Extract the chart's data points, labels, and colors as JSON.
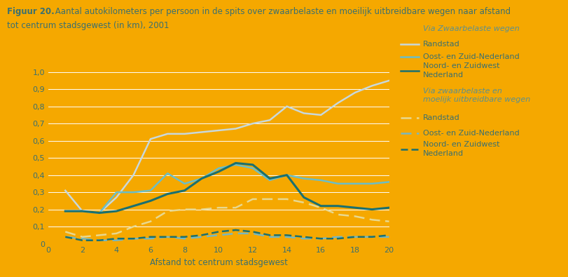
{
  "background_color": "#F5A800",
  "title_bold": "Figuur 20.",
  "title_normal": " Aantal autokilometers per persoon in de spits over zwaarbelaste en moeilijk uitbreidbare wegen naar afstand",
  "title_line2": "tot centrum stadsgewest (in km), 2001",
  "xlabel": "Afstand tot centrum stadsgewest",
  "xlim": [
    0,
    20
  ],
  "ylim": [
    0,
    1.0
  ],
  "yticks": [
    0,
    0.1,
    0.2,
    0.3,
    0.4,
    0.5,
    0.6,
    0.7,
    0.8,
    0.9,
    1.0
  ],
  "ytick_labels": [
    "0",
    "0,1",
    "0,2",
    "0,3",
    "0,4",
    "0,5",
    "0,6",
    "0,7",
    "0,8",
    "0,9",
    "1,0"
  ],
  "xticks": [
    0,
    2,
    4,
    6,
    8,
    10,
    12,
    14,
    16,
    18,
    20
  ],
  "x": [
    1,
    2,
    3,
    4,
    5,
    6,
    7,
    8,
    9,
    10,
    11,
    12,
    13,
    14,
    15,
    16,
    17,
    18,
    19,
    20
  ],
  "line_zwaar_randstad": [
    0.31,
    0.19,
    0.18,
    0.27,
    0.4,
    0.61,
    0.64,
    0.64,
    0.65,
    0.66,
    0.67,
    0.7,
    0.72,
    0.8,
    0.76,
    0.75,
    0.82,
    0.88,
    0.92,
    0.95
  ],
  "line_zwaar_oost": [
    0.19,
    0.19,
    0.18,
    0.3,
    0.3,
    0.31,
    0.41,
    0.35,
    0.38,
    0.44,
    0.46,
    0.44,
    0.37,
    0.4,
    0.38,
    0.37,
    0.35,
    0.35,
    0.35,
    0.36
  ],
  "line_zwaar_noord": [
    0.19,
    0.19,
    0.18,
    0.19,
    0.22,
    0.25,
    0.29,
    0.31,
    0.38,
    0.42,
    0.47,
    0.46,
    0.38,
    0.4,
    0.27,
    0.22,
    0.22,
    0.21,
    0.2,
    0.21
  ],
  "line_moei_randstad": [
    0.07,
    0.04,
    0.05,
    0.06,
    0.1,
    0.13,
    0.19,
    0.2,
    0.2,
    0.21,
    0.21,
    0.26,
    0.26,
    0.26,
    0.24,
    0.21,
    0.17,
    0.16,
    0.14,
    0.13
  ],
  "line_moei_oost": [
    0.04,
    0.03,
    0.02,
    0.02,
    0.03,
    0.03,
    0.04,
    0.03,
    0.04,
    0.05,
    0.06,
    0.06,
    0.04,
    0.04,
    0.03,
    0.03,
    0.04,
    0.04,
    0.04,
    0.04
  ],
  "line_moei_noord": [
    0.04,
    0.02,
    0.02,
    0.03,
    0.03,
    0.04,
    0.04,
    0.04,
    0.05,
    0.07,
    0.08,
    0.07,
    0.05,
    0.05,
    0.04,
    0.03,
    0.03,
    0.04,
    0.04,
    0.05
  ],
  "color_randstad_zwaar": "#C8D8DC",
  "color_oost_zwaar": "#6BBEC8",
  "color_noord_zwaar": "#1A7070",
  "color_randstad_moei": "#E8D890",
  "color_oost_moei": "#78B8C0",
  "color_noord_moei": "#1A7070",
  "title_color": "#3A7070",
  "text_color": "#3A7070",
  "italic_color": "#5A9090",
  "grid_color": "#FFFFFF",
  "legend_header1": "Via Zwaarbelaste wegen",
  "legend_label1": "Randstad",
  "legend_label2": "Oost- en Zuid-Nederland",
  "legend_label3a": "Noord- en Zuidwest",
  "legend_label3b": "Nederland",
  "legend_header2a": "Via zwaarbelaste en",
  "legend_header2b": "moelijk uitbreidbare wegen",
  "legend_label4": "Randstad",
  "legend_label5": "Oost- en Zuid-Nederland",
  "legend_label6a": "Noord- en Zuidwest",
  "legend_label6b": "Nederland"
}
